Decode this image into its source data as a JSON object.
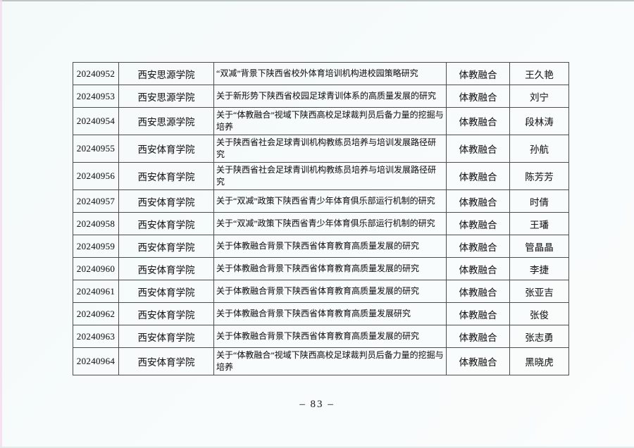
{
  "page": {
    "number_label": "–  83  –"
  },
  "colors": {
    "page_background": "#f6fafa",
    "table_border": "#4d4d4d",
    "text": "#1e1e1e",
    "scan_edge_top": "#a9b6b1",
    "scan_edge_left": "#f3dcee"
  },
  "table": {
    "columns": [
      "project_id",
      "institution",
      "title",
      "category",
      "leader"
    ],
    "rows": [
      {
        "project_id": "20240952",
        "institution": "西安思源学院",
        "title": "“双减”背景下陕西省校外体育培训机构进校园策略研究",
        "category": "体教融合",
        "leader": "王久艳"
      },
      {
        "project_id": "20240953",
        "institution": "西安思源学院",
        "title": "关于新形势下陕西省校园足球青训体系的高质量发展的研究",
        "category": "体教融合",
        "leader": "刘宁"
      },
      {
        "project_id": "20240954",
        "institution": "西安思源学院",
        "title": "关于“体教融合”视域下陕西高校足球裁判员后备力量的挖掘与培养",
        "category": "体教融合",
        "leader": "段林涛"
      },
      {
        "project_id": "20240955",
        "institution": "西安体育学院",
        "title": "关于陕西省社会足球青训机构教练员培养与培训发展路径研究",
        "category": "体教融合",
        "leader": "孙航"
      },
      {
        "project_id": "20240956",
        "institution": "西安体育学院",
        "title": "关于陕西省社会足球青训机构教练员培养与培训发展路径研究",
        "category": "体教融合",
        "leader": "陈芳芳"
      },
      {
        "project_id": "20240957",
        "institution": "西安体育学院",
        "title": "关于“双减”政策下陕西省青少年体育俱乐部运行机制的研究",
        "category": "体教融合",
        "leader": "时倩"
      },
      {
        "project_id": "20240958",
        "institution": "西安体育学院",
        "title": "关于“双减”政策下陕西省青少年体育俱乐部运行机制的研究",
        "category": "体教融合",
        "leader": "王璠"
      },
      {
        "project_id": "20240959",
        "institution": "西安体育学院",
        "title": "关于体教融合背景下陕西省体育教育高质量发展的研究",
        "category": "体教融合",
        "leader": "管晶晶"
      },
      {
        "project_id": "20240960",
        "institution": "西安体育学院",
        "title": "关于体教融合背景下陕西省体育教育高质量发展的研究",
        "category": "体教融合",
        "leader": "李捷"
      },
      {
        "project_id": "20240961",
        "institution": "西安体育学院",
        "title": "关于体教融合背景下陕西省体育教育高质量发展的研究",
        "category": "体教融合",
        "leader": "张亚吉"
      },
      {
        "project_id": "20240962",
        "institution": "西安体育学院",
        "title": "关于体教融合背景下陕西省体育教育高质量发展研究",
        "category": "体教融合",
        "leader": "张俊"
      },
      {
        "project_id": "20240963",
        "institution": "西安体育学院",
        "title": "关于体教融合背景下陕西省体育教育高质量发展的研究",
        "category": "体教融合",
        "leader": "张志勇"
      },
      {
        "project_id": "20240964",
        "institution": "西安体育学院",
        "title": "关于“体教融合”视域下陕西高校足球裁判员后备力量的挖掘与培养",
        "category": "体教融合",
        "leader": "黑晓虎"
      }
    ]
  }
}
